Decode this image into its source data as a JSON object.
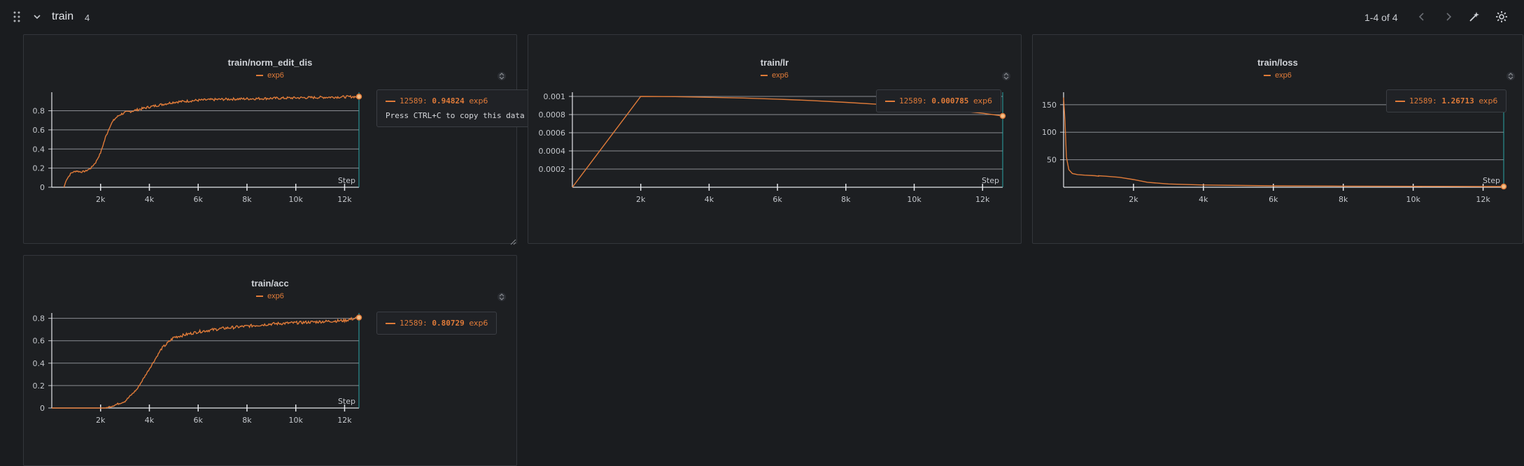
{
  "section": {
    "title": "train",
    "count": "4",
    "pager": "1-4 of 4"
  },
  "icons": {
    "drag": "drag-handle-icon",
    "collapse": "chevron-down-icon",
    "prev": "chevron-left-icon",
    "next": "chevron-right-icon",
    "magic": "magic-wand-icon",
    "settings": "gear-icon"
  },
  "colors": {
    "series": "#e07b39",
    "grid": "#8a8d93",
    "background": "#1a1c1f",
    "cursor": "#2aa6a6"
  },
  "panels": [
    {
      "title": "train/norm_edit_dis",
      "legend": "exp6",
      "tooltip": {
        "step": "12589",
        "value": "0.94824",
        "run": "exp6",
        "hint": "Press CTRL+C to copy this data"
      }
    },
    {
      "title": "train/lr",
      "legend": "exp6",
      "tooltip": {
        "step": "12589",
        "value": "0.000785",
        "run": "exp6"
      }
    },
    {
      "title": "train/loss",
      "legend": "exp6",
      "tooltip": {
        "step": "12589",
        "value": "1.26713",
        "run": "exp6"
      }
    },
    {
      "title": "train/acc",
      "legend": "exp6",
      "tooltip": {
        "step": "12589",
        "value": "0.80729",
        "run": "exp6"
      }
    }
  ],
  "chart_data": [
    {
      "type": "line",
      "title": "train/norm_edit_dis",
      "xlabel": "Step",
      "ylabel": "",
      "xlim": [
        0,
        12589
      ],
      "ylim": [
        0,
        0.95
      ],
      "xticks": [
        2000,
        4000,
        6000,
        8000,
        10000,
        12000
      ],
      "xtick_labels": [
        "2k",
        "4k",
        "6k",
        "8k",
        "10k",
        "12k"
      ],
      "yticks": [
        0,
        0.2,
        0.4,
        0.6,
        0.8
      ],
      "ytick_labels": [
        "0",
        "0.2",
        "0.4",
        "0.6",
        "0.8"
      ],
      "grid": true,
      "legend": "top-center",
      "noise": 0.008,
      "series": [
        {
          "name": "exp6",
          "x": [
            500,
            600,
            800,
            1000,
            1200,
            1400,
            1600,
            1800,
            2000,
            2200,
            2400,
            2600,
            2800,
            3000,
            3500,
            4000,
            5000,
            6000,
            7000,
            8000,
            9000,
            10000,
            11000,
            12000,
            12589
          ],
          "y": [
            0.0,
            0.08,
            0.15,
            0.17,
            0.16,
            0.17,
            0.2,
            0.26,
            0.36,
            0.52,
            0.65,
            0.72,
            0.76,
            0.78,
            0.81,
            0.84,
            0.89,
            0.91,
            0.92,
            0.925,
            0.93,
            0.935,
            0.94,
            0.945,
            0.948
          ]
        }
      ]
    },
    {
      "type": "line",
      "title": "train/lr",
      "xlabel": "Step",
      "ylabel": "",
      "xlim": [
        0,
        12589
      ],
      "ylim": [
        0,
        0.001
      ],
      "xticks": [
        2000,
        4000,
        6000,
        8000,
        10000,
        12000
      ],
      "xtick_labels": [
        "2k",
        "4k",
        "6k",
        "8k",
        "10k",
        "12k"
      ],
      "yticks": [
        0.0002,
        0.0004,
        0.0006,
        0.0008,
        0.001
      ],
      "ytick_labels": [
        "0.0002",
        "0.0004",
        "0.0006",
        "0.0008",
        "0.001"
      ],
      "grid": true,
      "legend": "top-center",
      "noise": 0,
      "series": [
        {
          "name": "exp6",
          "x": [
            0,
            2000,
            3000,
            4000,
            5000,
            6000,
            7000,
            8000,
            9000,
            10000,
            11000,
            12000,
            12589
          ],
          "y": [
            0.0,
            0.001,
            0.000998,
            0.00099,
            0.000982,
            0.00097,
            0.000955,
            0.000935,
            0.000912,
            0.000885,
            0.000855,
            0.000815,
            0.000785
          ]
        }
      ]
    },
    {
      "type": "line",
      "title": "train/loss",
      "xlabel": "Step",
      "ylabel": "",
      "xlim": [
        0,
        12589
      ],
      "ylim": [
        0,
        165
      ],
      "xticks": [
        2000,
        4000,
        6000,
        8000,
        10000,
        12000
      ],
      "xtick_labels": [
        "2k",
        "4k",
        "6k",
        "8k",
        "10k",
        "12k"
      ],
      "yticks": [
        50,
        100,
        150
      ],
      "ytick_labels": [
        "50",
        "100",
        "150"
      ],
      "grid": true,
      "legend": "top-center",
      "noise": 0,
      "series": [
        {
          "name": "exp6",
          "x": [
            0,
            40,
            80,
            150,
            250,
            400,
            600,
            900,
            1000,
            1000,
            1200,
            1600,
            2000,
            2400,
            3000,
            4000,
            6000,
            8000,
            10000,
            12000,
            12589
          ],
          "y": [
            163,
            120,
            55,
            32,
            25,
            23,
            22,
            21,
            20,
            21,
            20,
            18,
            14,
            9,
            6,
            4,
            2.5,
            2,
            1.6,
            1.3,
            1.27
          ]
        }
      ]
    },
    {
      "type": "line",
      "title": "train/acc",
      "xlabel": "Step",
      "ylabel": "",
      "xlim": [
        0,
        12589
      ],
      "ylim": [
        0,
        0.81
      ],
      "xticks": [
        2000,
        4000,
        6000,
        8000,
        10000,
        12000
      ],
      "xtick_labels": [
        "2k",
        "4k",
        "6k",
        "8k",
        "10k",
        "12k"
      ],
      "yticks": [
        0,
        0.2,
        0.4,
        0.6,
        0.8
      ],
      "ytick_labels": [
        "0",
        "0.2",
        "0.4",
        "0.6",
        "0.8"
      ],
      "grid": true,
      "legend": "top-center",
      "noise": 0.008,
      "series": [
        {
          "name": "exp6",
          "x": [
            0,
            2000,
            2200,
            2500,
            3000,
            3500,
            4000,
            4500,
            5000,
            6000,
            7000,
            8000,
            9000,
            10000,
            11000,
            12000,
            12589
          ],
          "y": [
            0,
            0,
            0.0,
            0.02,
            0.06,
            0.17,
            0.35,
            0.53,
            0.63,
            0.68,
            0.71,
            0.73,
            0.75,
            0.76,
            0.77,
            0.78,
            0.807
          ]
        }
      ]
    }
  ]
}
